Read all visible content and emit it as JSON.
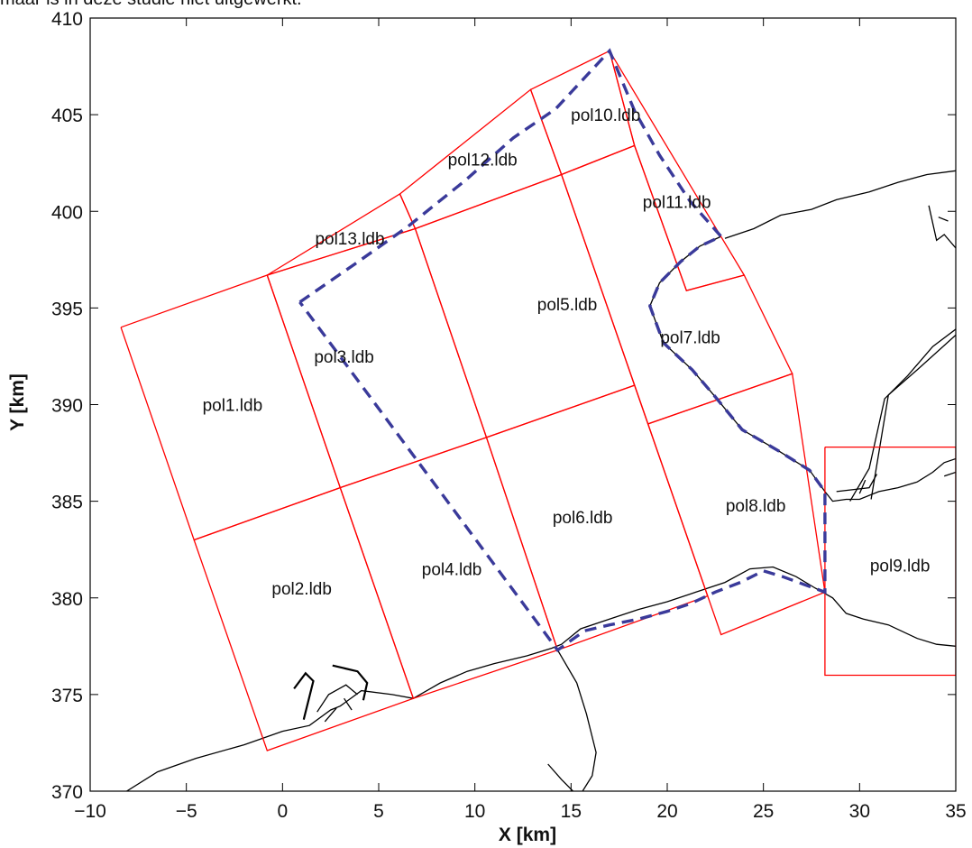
{
  "caption": "maar is in deze studie niet uitgewerkt.",
  "colors": {
    "polygon": "#ff0000",
    "path": "#3a3a9a",
    "coast": "#000000",
    "axis": "#000000"
  },
  "chart_data": {
    "type": "line",
    "xlabel": "X [km]",
    "ylabel": "Y [km]",
    "xlim": [
      -10,
      35
    ],
    "ylim": [
      370,
      410
    ],
    "xticks": [
      -10,
      -5,
      0,
      5,
      10,
      15,
      20,
      25,
      30,
      35
    ],
    "yticks": [
      370,
      375,
      380,
      385,
      390,
      395,
      400,
      405,
      410
    ],
    "grid": false,
    "polygons": [
      {
        "name": "pol1.ldb",
        "label_at": [
          -2.6,
          390
        ],
        "points": [
          [
            -8.4,
            394
          ],
          [
            -0.8,
            396.7
          ],
          [
            3,
            385.7
          ],
          [
            -4.6,
            383
          ],
          [
            -8.4,
            394
          ]
        ]
      },
      {
        "name": "pol2.ldb",
        "label_at": [
          1,
          380.5
        ],
        "points": [
          [
            -4.6,
            383
          ],
          [
            3,
            385.7
          ],
          [
            6.8,
            374.8
          ],
          [
            -0.8,
            372.1
          ],
          [
            -4.6,
            383
          ]
        ]
      },
      {
        "name": "pol3.ldb",
        "label_at": [
          3.2,
          392.5
        ],
        "points": [
          [
            -0.8,
            396.7
          ],
          [
            6.9,
            399.1
          ],
          [
            10.6,
            388.3
          ],
          [
            3,
            385.7
          ],
          [
            -0.8,
            396.7
          ]
        ]
      },
      {
        "name": "pol4.ldb",
        "label_at": [
          8.8,
          381.5
        ],
        "points": [
          [
            3,
            385.7
          ],
          [
            10.6,
            388.3
          ],
          [
            14.3,
            377.3
          ],
          [
            6.8,
            374.8
          ],
          [
            3,
            385.7
          ]
        ]
      },
      {
        "name": "pol5.ldb",
        "label_at": [
          14.8,
          395.2
        ],
        "points": [
          [
            6.9,
            399.1
          ],
          [
            14.5,
            401.9
          ],
          [
            18.3,
            391
          ],
          [
            10.6,
            388.3
          ],
          [
            6.9,
            399.1
          ]
        ]
      },
      {
        "name": "pol6.ldb",
        "label_at": [
          15.6,
          384.2
        ],
        "points": [
          [
            10.6,
            388.3
          ],
          [
            18.3,
            391
          ],
          [
            22.1,
            380.1
          ],
          [
            14.3,
            377.3
          ],
          [
            10.6,
            388.3
          ]
        ]
      },
      {
        "name": "pol7.ldb",
        "label_at": [
          21.2,
          393.5
        ],
        "points": [
          [
            14.5,
            401.9
          ],
          [
            18.3,
            403.4
          ],
          [
            21,
            395.9
          ],
          [
            24,
            396.7
          ],
          [
            26.5,
            391.6
          ],
          [
            19,
            389
          ],
          [
            14.5,
            401.9
          ]
        ]
      },
      {
        "name": "pol8.ldb",
        "label_at": [
          24.6,
          384.8
        ],
        "points": [
          [
            19,
            389
          ],
          [
            26.5,
            391.6
          ],
          [
            28.2,
            380.3
          ],
          [
            22.8,
            378.1
          ],
          [
            19,
            389
          ]
        ]
      },
      {
        "name": "pol9.ldb",
        "label_at": [
          32.1,
          381.7
        ],
        "points": [
          [
            28.2,
            387.8
          ],
          [
            35,
            387.8
          ],
          [
            35,
            376
          ],
          [
            28.2,
            376
          ],
          [
            28.2,
            387.8
          ]
        ]
      },
      {
        "name": "pol10.ldb",
        "label_at": [
          16.8,
          405
        ],
        "points": [
          [
            12.9,
            406.3
          ],
          [
            17,
            408.3
          ],
          [
            18.3,
            403.4
          ],
          [
            14.5,
            401.9
          ],
          [
            12.9,
            406.3
          ]
        ]
      },
      {
        "name": "pol11.ldb",
        "label_at": [
          20.5,
          400.5
        ],
        "points": [
          [
            17,
            408.3
          ],
          [
            24,
            396.7
          ],
          [
            21,
            395.9
          ],
          [
            18.3,
            403.4
          ],
          [
            17,
            408.3
          ]
        ]
      },
      {
        "name": "pol12.ldb",
        "label_at": [
          10.4,
          402.7
        ],
        "points": [
          [
            6.1,
            400.9
          ],
          [
            12.9,
            406.3
          ],
          [
            14.5,
            401.9
          ],
          [
            6.9,
            399.1
          ],
          [
            6.1,
            400.9
          ]
        ]
      },
      {
        "name": "pol13.ldb",
        "label_at": [
          3.5,
          398.6
        ],
        "points": [
          [
            -0.8,
            396.7
          ],
          [
            6.1,
            400.9
          ],
          [
            6.9,
            399.1
          ],
          [
            -0.8,
            396.7
          ]
        ]
      }
    ],
    "series": [
      {
        "style": "dashed",
        "points": [
          [
            0.9,
            395.3
          ],
          [
            3.8,
            397.3
          ],
          [
            6.5,
            399.2
          ],
          [
            9.5,
            401.6
          ],
          [
            12,
            403.8
          ],
          [
            14.2,
            405.3
          ],
          [
            17,
            408.3
          ],
          [
            18.3,
            405.2
          ],
          [
            19.6,
            402.9
          ],
          [
            21.2,
            400.5
          ],
          [
            22.8,
            398.7
          ],
          [
            21.7,
            398.2
          ],
          [
            20.7,
            397.4
          ],
          [
            19.6,
            396.3
          ],
          [
            19.1,
            395.1
          ],
          [
            19.8,
            393.2
          ],
          [
            21.3,
            391.8
          ],
          [
            22.5,
            390.4
          ],
          [
            23.9,
            388.7
          ],
          [
            25.8,
            387.6
          ],
          [
            27.4,
            386.6
          ],
          [
            28.2,
            385.5
          ],
          [
            28.2,
            380.3
          ],
          [
            27.1,
            380.7
          ],
          [
            26,
            381.1
          ],
          [
            25,
            381.4
          ],
          [
            23.8,
            380.8
          ],
          [
            22.5,
            380.3
          ],
          [
            21.2,
            379.7
          ],
          [
            20,
            379.3
          ],
          [
            18.5,
            378.9
          ],
          [
            17,
            378.6
          ],
          [
            15.7,
            378.3
          ],
          [
            14.3,
            377.3
          ],
          [
            0.9,
            395.3
          ]
        ]
      }
    ],
    "coastlines": [
      [
        [
          -8.1,
          370
        ],
        [
          -6.5,
          371
        ],
        [
          -4.5,
          371.7
        ],
        [
          -2,
          372.4
        ],
        [
          0,
          373.1
        ],
        [
          1.4,
          373.4
        ],
        [
          2.5,
          374.2
        ],
        [
          3,
          374.4
        ],
        [
          4.1,
          375.2
        ],
        [
          5.7,
          375
        ],
        [
          6.8,
          374.8
        ],
        [
          8.2,
          375.6
        ],
        [
          9.6,
          376.2
        ],
        [
          11,
          376.6
        ],
        [
          12.7,
          377
        ],
        [
          14,
          377.4
        ],
        [
          14.5,
          377.6
        ],
        [
          15.5,
          378.4
        ],
        [
          17,
          378.9
        ],
        [
          18.5,
          379.4
        ],
        [
          20,
          379.8
        ],
        [
          21.5,
          380.3
        ],
        [
          23,
          380.8
        ],
        [
          24.3,
          381.5
        ],
        [
          25.5,
          381.6
        ],
        [
          26.7,
          381.1
        ],
        [
          27.7,
          380.5
        ],
        [
          28.6,
          380
        ],
        [
          29.3,
          379.2
        ],
        [
          30.2,
          378.9
        ],
        [
          31.5,
          378.6
        ],
        [
          33,
          377.9
        ],
        [
          34,
          377.6
        ],
        [
          35,
          377.5
        ]
      ],
      [
        [
          14.3,
          377.3
        ],
        [
          15.3,
          375.6
        ],
        [
          15.8,
          374
        ],
        [
          16.3,
          372
        ],
        [
          16.1,
          370.8
        ],
        [
          15.6,
          370
        ]
      ],
      [
        [
          13.8,
          371.4
        ],
        [
          14.5,
          370.6
        ],
        [
          15.1,
          370
        ]
      ],
      [
        [
          0.6,
          375.3
        ],
        [
          1.2,
          376.1
        ],
        [
          1.6,
          375.7
        ],
        [
          1.1,
          373.7
        ]
      ],
      [
        [
          2.6,
          376.5
        ],
        [
          3.9,
          376.2
        ],
        [
          4.4,
          375.6
        ],
        [
          4.2,
          374.7
        ]
      ],
      [
        [
          1.8,
          374.1
        ],
        [
          2.4,
          375
        ],
        [
          3.3,
          375.5
        ],
        [
          3.9,
          375
        ]
      ],
      [
        [
          3.2,
          374.8
        ],
        [
          3.6,
          374.2
        ]
      ],
      [
        [
          2.2,
          373.6
        ],
        [
          2.8,
          374.3
        ]
      ],
      [
        [
          28.2,
          385.5
        ],
        [
          28.6,
          385
        ],
        [
          29.3,
          385.1
        ],
        [
          30,
          385.1
        ],
        [
          31,
          385.5
        ],
        [
          32,
          385.7
        ],
        [
          33,
          386
        ],
        [
          33.8,
          386.5
        ],
        [
          34.4,
          387
        ],
        [
          35,
          387.2
        ]
      ],
      [
        [
          28.8,
          385.5
        ],
        [
          30.5,
          385.7
        ],
        [
          30.9,
          386.4
        ]
      ],
      [
        [
          30,
          385.4
        ],
        [
          30.3,
          386.1
        ]
      ],
      [
        [
          34.4,
          386.3
        ],
        [
          35,
          386.5
        ]
      ],
      [
        [
          23,
          398.6
        ],
        [
          24.5,
          399.1
        ],
        [
          25.9,
          399.8
        ],
        [
          27.5,
          400.1
        ],
        [
          28.8,
          400.6
        ],
        [
          30.5,
          401
        ],
        [
          32,
          401.5
        ],
        [
          33.5,
          401.9
        ],
        [
          35,
          402.1
        ]
      ],
      [
        [
          22.8,
          398.7
        ],
        [
          21.7,
          398.2
        ],
        [
          20.7,
          397.4
        ],
        [
          19.6,
          396.3
        ],
        [
          19.1,
          395.1
        ],
        [
          19.8,
          393.2
        ],
        [
          21.3,
          391.8
        ],
        [
          22.5,
          390.4
        ],
        [
          23.9,
          388.7
        ],
        [
          25.8,
          387.6
        ],
        [
          27.4,
          386.6
        ],
        [
          28.2,
          385.5
        ]
      ],
      [
        [
          33.6,
          400.3
        ],
        [
          34,
          398.5
        ],
        [
          34.4,
          398.8
        ],
        [
          35,
          398.1
        ]
      ],
      [
        [
          34.1,
          399.7
        ],
        [
          34.6,
          399.5
        ]
      ],
      [
        [
          29.5,
          385
        ],
        [
          30.5,
          386.7
        ],
        [
          31.3,
          390.3
        ],
        [
          32.5,
          391.5
        ],
        [
          33.8,
          393
        ],
        [
          35,
          393.9
        ]
      ],
      [
        [
          30.6,
          385.1
        ],
        [
          31.5,
          390.5
        ],
        [
          33,
          391.8
        ],
        [
          35,
          393.6
        ]
      ]
    ]
  }
}
